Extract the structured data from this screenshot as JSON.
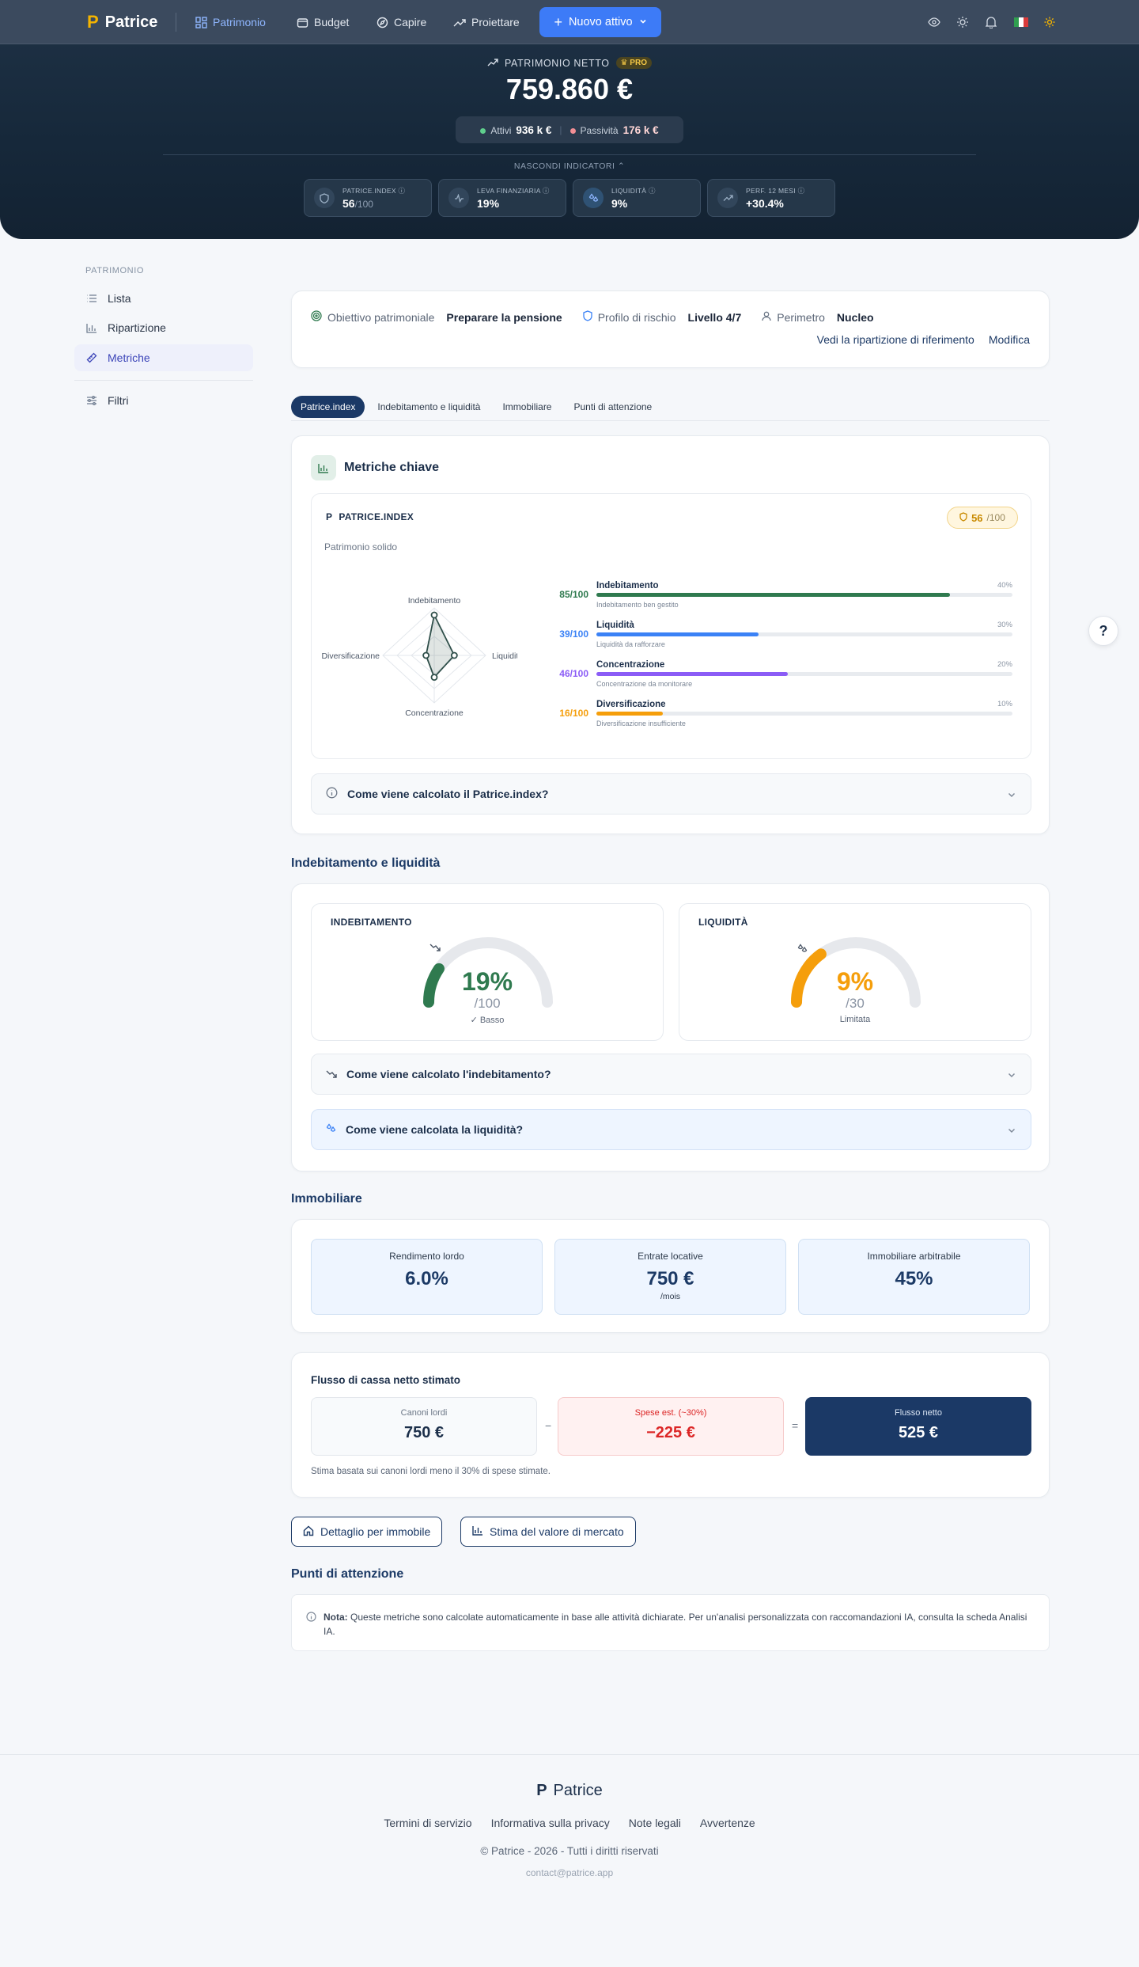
{
  "app": {
    "name": "Patrice",
    "logo_mark": "P"
  },
  "nav": {
    "items": [
      {
        "label": "Patrimonio",
        "icon": "grid-icon",
        "active": true
      },
      {
        "label": "Budget",
        "icon": "wallet-icon"
      },
      {
        "label": "Capire",
        "icon": "compass-icon"
      },
      {
        "label": "Proiettare",
        "icon": "trend-up-icon"
      }
    ],
    "new_asset_label": "Nuovo attivo"
  },
  "hero": {
    "net_label": "PATRIMONIO NETTO",
    "pro_badge": "PRO",
    "net_value": "759.860 €",
    "assets_label": "Attivi",
    "assets_value": "936 k €",
    "liabilities_label": "Passività",
    "liabilities_value": "176 k €",
    "hide_label": "NASCONDI INDICATORI",
    "indicators": [
      {
        "label": "PATRICE.INDEX",
        "value": "56",
        "suffix": "/100"
      },
      {
        "label": "LEVA FINANZIARIA",
        "value": "19%",
        "suffix": ""
      },
      {
        "label": "LIQUIDITÀ",
        "value": "9%",
        "suffix": ""
      },
      {
        "label": "PERF. 12 MESI",
        "value": "+30.4%",
        "suffix": ""
      }
    ]
  },
  "sidebar": {
    "title": "PATRIMONIO",
    "items": [
      {
        "label": "Lista",
        "icon": "list-icon"
      },
      {
        "label": "Ripartizione",
        "icon": "bar-chart-icon"
      },
      {
        "label": "Metriche",
        "icon": "ruler-icon",
        "active": true
      }
    ],
    "filters_label": "Filtri"
  },
  "objective": {
    "goal_label": "Obiettivo patrimoniale",
    "goal_value": "Preparare la pensione",
    "risk_label": "Profilo di rischio",
    "risk_value": "Livello 4/7",
    "perimeter_label": "Perimetro",
    "perimeter_value": "Nucleo",
    "link_allocation": "Vedi la ripartizione di riferimento",
    "link_edit": "Modifica"
  },
  "tabs": [
    "Patrice.index",
    "Indebitamento e liquidità",
    "Immobiliare",
    "Punti di attenzione"
  ],
  "metriche": {
    "title": "Metriche chiave",
    "index_title": "PATRICE.INDEX",
    "index_score": "56",
    "index_max": "/100",
    "index_subtitle": "Patrimonio solido",
    "radar_labels": {
      "top": "Indebitamento",
      "right": "Liquidità",
      "bottom": "Concentrazione",
      "left": "Diversificazione"
    },
    "components": [
      {
        "name": "Indebitamento",
        "score": "85/100",
        "value": 85,
        "weight": "40%",
        "note": "Indebitamento ben gestito",
        "color": "#2f7a4f"
      },
      {
        "name": "Liquidità",
        "score": "39/100",
        "value": 39,
        "weight": "30%",
        "note": "Liquidità da rafforzare",
        "color": "#3b82f6"
      },
      {
        "name": "Concentrazione",
        "score": "46/100",
        "value": 46,
        "weight": "20%",
        "note": "Concentrazione da monitorare",
        "color": "#8b5cf6"
      },
      {
        "name": "Diversificazione",
        "score": "16/100",
        "value": 16,
        "weight": "10%",
        "note": "Diversificazione insufficiente",
        "color": "#f59e0b"
      }
    ],
    "faq": "Come viene calcolato il Patrice.index?"
  },
  "debt": {
    "section_title": "Indebitamento e liquidità",
    "debt_title": "INDEBITAMENTO",
    "debt_value": "19%",
    "debt_fill": 19,
    "debt_of": "/100",
    "debt_caption": "✓ Basso",
    "liq_title": "LIQUIDITÀ",
    "liq_value": "9%",
    "liq_fill": 9,
    "liq_max": 30,
    "liq_of": "/30",
    "liq_caption": "Limitata",
    "faq_debt": "Come viene calcolato l'indebitamento?",
    "faq_liq": "Come viene calcolata la liquidità?"
  },
  "immo": {
    "section_title": "Immobiliare",
    "kpis": [
      {
        "label": "Rendimento lordo",
        "value": "6.0%",
        "sub": ""
      },
      {
        "label": "Entrate locative",
        "value": "750 €",
        "sub": "/mois"
      },
      {
        "label": "Immobiliare arbitrabile",
        "value": "45%",
        "sub": ""
      }
    ]
  },
  "flusso": {
    "title": "Flusso di cassa netto stimato",
    "gross_label": "Canoni lordi",
    "gross_value": "750 €",
    "minus": "−",
    "costs_label": "Spese est. (~30%)",
    "costs_value": "−225 €",
    "equals": "=",
    "net_label": "Flusso netto",
    "net_value": "525 €",
    "note": "Stima basata sui canoni lordi meno il 30% di spese stimate."
  },
  "buttons": {
    "detail": "Dettaglio per immobile",
    "estimate": "Stima del valore di mercato"
  },
  "attention": {
    "title": "Punti di attenzione",
    "note_bold": "Nota:",
    "note_text": " Queste metriche sono calcolate automaticamente in base alle attività dichiarate. Per un'analisi personalizzata con raccomandazioni IA, consulta la scheda Analisi IA."
  },
  "help": "?",
  "footer": {
    "links": [
      "Termini di servizio",
      "Informativa sulla privacy",
      "Note legali",
      "Avvertenze"
    ],
    "copyright": "© Patrice - 2026 - Tutti i diritti riservati",
    "email": "contact@patrice.app"
  },
  "colors": {
    "accent": "#3d7bf7",
    "navy": "#1b3966",
    "green": "#2f7a4f",
    "orange": "#f59e0b",
    "red": "#dc2626"
  }
}
